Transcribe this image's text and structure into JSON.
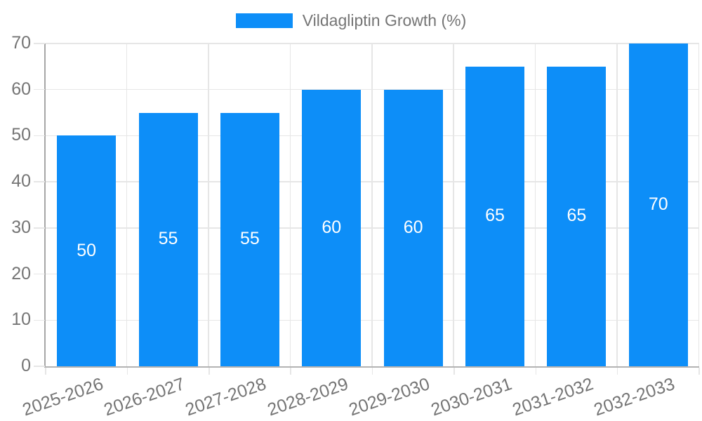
{
  "legend": {
    "label": "Vildagliptin Growth (%)"
  },
  "chart_data": {
    "type": "bar",
    "title": "Vildagliptin Growth (%)",
    "categories": [
      "2025-2026",
      "2026-2027",
      "2027-2028",
      "2028-2029",
      "2029-2030",
      "2030-2031",
      "2031-2032",
      "2032-2033"
    ],
    "values": [
      50,
      55,
      55,
      60,
      60,
      65,
      65,
      70
    ],
    "xlabel": "",
    "ylabel": "",
    "ylim": [
      0,
      70
    ],
    "ytick_step": 10,
    "yticks": [
      0,
      10,
      20,
      30,
      40,
      50,
      60,
      70
    ],
    "grid": true,
    "legend_position": "top",
    "bar_value_labels_visible": true
  },
  "colors": {
    "bar": "#0D8EF8",
    "grid": "#e6e6e6",
    "axis_y": "#a6a6a6",
    "axis_x": "#b3b3b3",
    "tick_text": "#757575",
    "bar_label_text": "#ffffff",
    "legend_text": "#757575",
    "background": "#ffffff"
  }
}
